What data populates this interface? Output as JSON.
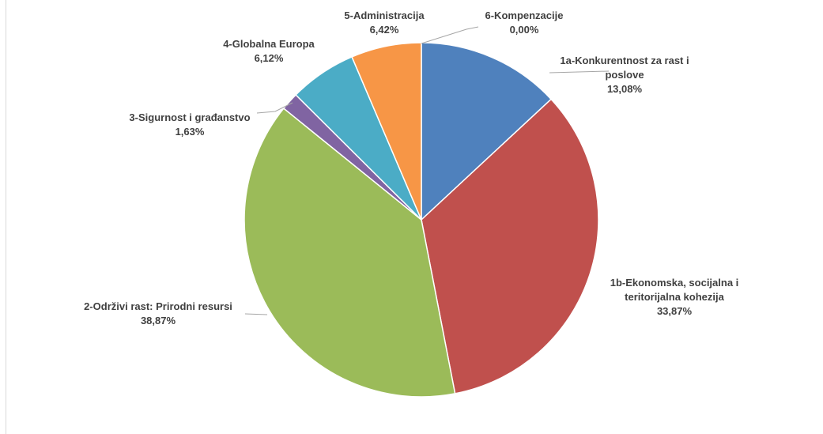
{
  "chart_data": {
    "type": "pie",
    "title": "",
    "slices": [
      {
        "name": "1a-Konkurentnost za rast i poslove",
        "label_lines": [
          "1a-Konkurentnost za rast i",
          "poslove"
        ],
        "value": 13.08,
        "value_label": "13,08%",
        "color": "#4F81BD"
      },
      {
        "name": "1b-Ekonomska, socijalna i teritorijalna kohezija",
        "label_lines": [
          "1b-Ekonomska, socijalna i",
          "teritorijalna kohezija"
        ],
        "value": 33.87,
        "value_label": "33,87%",
        "color": "#C0504D"
      },
      {
        "name": "2-Održivi rast: Prirodni resursi",
        "label_lines": [
          "2-Održivi rast: Prirodni resursi"
        ],
        "value": 38.87,
        "value_label": "38,87%",
        "color": "#9BBB59"
      },
      {
        "name": "3-Sigurnost i građanstvo",
        "label_lines": [
          "3-Sigurnost i građanstvo"
        ],
        "value": 1.63,
        "value_label": "1,63%",
        "color": "#8064A2"
      },
      {
        "name": "4-Globalna Europa",
        "label_lines": [
          "4-Globalna Europa"
        ],
        "value": 6.12,
        "value_label": "6,12%",
        "color": "#4BACC6"
      },
      {
        "name": "5-Administracija",
        "label_lines": [
          "5-Administracija"
        ],
        "value": 6.42,
        "value_label": "6,42%",
        "color": "#F79646"
      },
      {
        "name": "6-Kompenzacije",
        "label_lines": [
          "6-Kompenzacije"
        ],
        "value": 0.0,
        "value_label": "0,00%",
        "color": "#2C4D75"
      }
    ],
    "start_angle": "12 o'clock",
    "direction": "clockwise",
    "legend": "none",
    "leader_line_color": "#a6a6a6",
    "label_color": "#404040"
  }
}
